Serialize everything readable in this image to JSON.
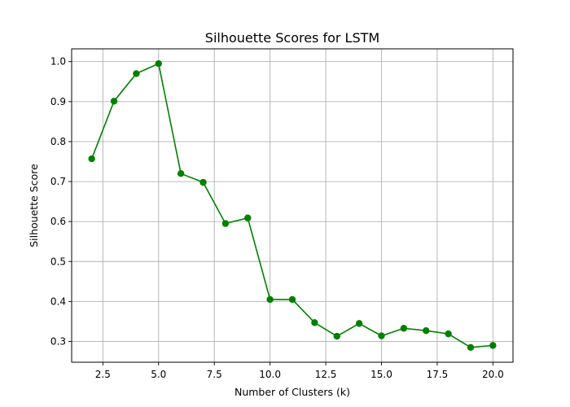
{
  "chart_data": {
    "type": "line",
    "title": "Silhouette Scores for LSTM",
    "xlabel": "Number of Clusters (k)",
    "ylabel": "Silhouette Score",
    "xlim": [
      1.1,
      20.9
    ],
    "ylim": [
      0.248,
      1.032
    ],
    "xticks": [
      2.5,
      5.0,
      7.5,
      10.0,
      12.5,
      15.0,
      17.5,
      20.0
    ],
    "xtick_labels": [
      "2.5",
      "5.0",
      "7.5",
      "10.0",
      "12.5",
      "15.0",
      "17.5",
      "20.0"
    ],
    "yticks": [
      0.3,
      0.4,
      0.5,
      0.6,
      0.7,
      0.8,
      0.9,
      1.0
    ],
    "ytick_labels": [
      "0.3",
      "0.4",
      "0.5",
      "0.6",
      "0.7",
      "0.8",
      "0.9",
      "1.0"
    ],
    "grid": true,
    "x": [
      2,
      3,
      4,
      5,
      6,
      7,
      8,
      9,
      10,
      11,
      12,
      13,
      14,
      15,
      16,
      17,
      18,
      19,
      20
    ],
    "series": [
      {
        "values": [
          0.757,
          0.901,
          0.97,
          0.995,
          0.72,
          0.698,
          0.595,
          0.609,
          0.405,
          0.405,
          0.347,
          0.313,
          0.345,
          0.314,
          0.333,
          0.327,
          0.319,
          0.285,
          0.29
        ],
        "color": "#008000",
        "marker": "circle"
      }
    ]
  }
}
